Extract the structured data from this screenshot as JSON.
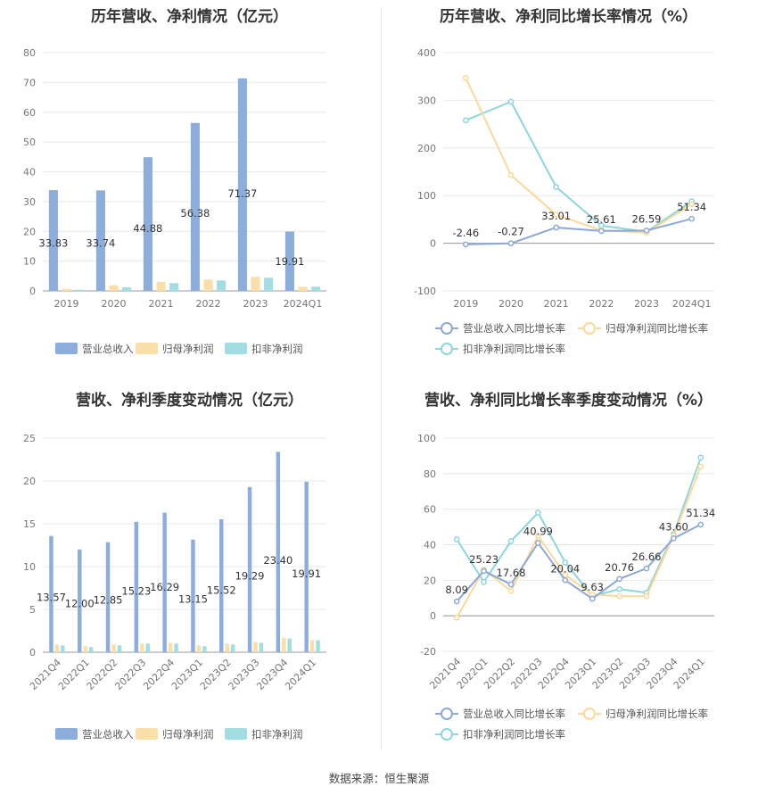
{
  "source_label": "数据来源：恒生聚源",
  "colors": {
    "revenue": "#8daddc",
    "net_profit": "#fbdfa9",
    "deducted_profit": "#a3dde4",
    "revenue_line": "#8da9d6",
    "net_profit_line": "#fbd99a",
    "deducted_profit_line": "#8dd6dc",
    "grid": "#e8e8e8",
    "axis": "#999999"
  },
  "chart_data": [
    {
      "id": "annual_bar",
      "type": "bar",
      "title": "历年营收、净利情况（亿元）",
      "categories": [
        "2019",
        "2020",
        "2021",
        "2022",
        "2023",
        "2024Q1"
      ],
      "ylim": [
        0,
        80
      ],
      "yticks": [
        0,
        10,
        20,
        30,
        40,
        50,
        60,
        70,
        80
      ],
      "grid": true,
      "legend_position": "bottom",
      "series": [
        {
          "name": "营业总收入",
          "values": [
            33.83,
            33.74,
            44.88,
            56.38,
            71.37,
            19.91
          ],
          "labels": [
            "33.83",
            "33.74",
            "44.88",
            "56.38",
            "71.37",
            "19.91"
          ]
        },
        {
          "name": "归母净利润",
          "values": [
            0.7,
            1.9,
            3.0,
            3.8,
            4.7,
            1.4
          ]
        },
        {
          "name": "扣非净利润",
          "values": [
            0.4,
            1.2,
            2.6,
            3.5,
            4.4,
            1.4
          ]
        }
      ]
    },
    {
      "id": "annual_growth",
      "type": "line",
      "title": "历年营收、净利同比增长率情况（%）",
      "categories": [
        "2019",
        "2020",
        "2021",
        "2022",
        "2023",
        "2024Q1"
      ],
      "ylim": [
        -100,
        400
      ],
      "yticks": [
        -100,
        0,
        100,
        200,
        300,
        400
      ],
      "grid": true,
      "legend_position": "bottom",
      "series": [
        {
          "name": "营业总收入同比增长率",
          "values": [
            -2.46,
            -0.27,
            33.01,
            25.61,
            26.59,
            51.34
          ],
          "labels": [
            "-2.46",
            "-0.27",
            "33.01",
            "25.61",
            "26.59",
            "51.34"
          ]
        },
        {
          "name": "归母净利润同比增长率",
          "values": [
            347,
            143,
            60,
            27,
            22,
            82
          ]
        },
        {
          "name": "扣非净利润同比增长率",
          "values": [
            258,
            297,
            118,
            37,
            24,
            88
          ]
        }
      ]
    },
    {
      "id": "quarterly_bar",
      "type": "bar",
      "title": "营收、净利季度变动情况（亿元）",
      "categories": [
        "2021Q4",
        "2022Q1",
        "2022Q2",
        "2022Q3",
        "2022Q4",
        "2023Q1",
        "2023Q2",
        "2023Q3",
        "2023Q4",
        "2024Q1"
      ],
      "ylim": [
        0,
        25
      ],
      "yticks": [
        0,
        5,
        10,
        15,
        20,
        25
      ],
      "grid": true,
      "legend_position": "bottom",
      "series": [
        {
          "name": "营业总收入",
          "values": [
            13.57,
            12.0,
            12.85,
            15.23,
            16.29,
            13.15,
            15.52,
            19.29,
            23.4,
            19.91
          ],
          "labels": [
            "13.57",
            "12.00",
            "12.85",
            "15.23",
            "16.29",
            "13.15",
            "15.52",
            "19.29",
            "23.40",
            "19.91"
          ]
        },
        {
          "name": "归母净利润",
          "values": [
            0.9,
            0.7,
            0.9,
            1.0,
            1.1,
            0.8,
            1.0,
            1.2,
            1.7,
            1.4
          ]
        },
        {
          "name": "扣非净利润",
          "values": [
            0.8,
            0.6,
            0.8,
            1.0,
            1.0,
            0.7,
            0.9,
            1.1,
            1.6,
            1.4
          ]
        }
      ]
    },
    {
      "id": "quarterly_growth",
      "type": "line",
      "title": "营收、净利同比增长率季度变动情况（%）",
      "categories": [
        "2021Q4",
        "2022Q1",
        "2022Q2",
        "2022Q3",
        "2022Q4",
        "2023Q1",
        "2023Q2",
        "2023Q3",
        "2023Q4",
        "2024Q1"
      ],
      "ylim": [
        -20,
        100
      ],
      "yticks": [
        -20,
        0,
        20,
        40,
        60,
        80,
        100
      ],
      "grid": true,
      "legend_position": "bottom",
      "series": [
        {
          "name": "营业总收入同比增长率",
          "values": [
            8.09,
            25.23,
            17.68,
            40.99,
            20.04,
            9.63,
            20.76,
            26.66,
            43.6,
            51.34
          ],
          "labels": [
            "8.09",
            "25.23",
            "17.68",
            "40.99",
            "20.04",
            "9.63",
            "20.76",
            "26.66",
            "43.60",
            "51.34"
          ]
        },
        {
          "name": "归母净利润同比增长率",
          "values": [
            -1,
            26,
            14,
            45,
            23,
            12,
            11,
            11,
            45,
            84
          ]
        },
        {
          "name": "扣非净利润同比增长率",
          "values": [
            43,
            19,
            42,
            58,
            30,
            11,
            15,
            13,
            46,
            89
          ]
        }
      ]
    }
  ]
}
